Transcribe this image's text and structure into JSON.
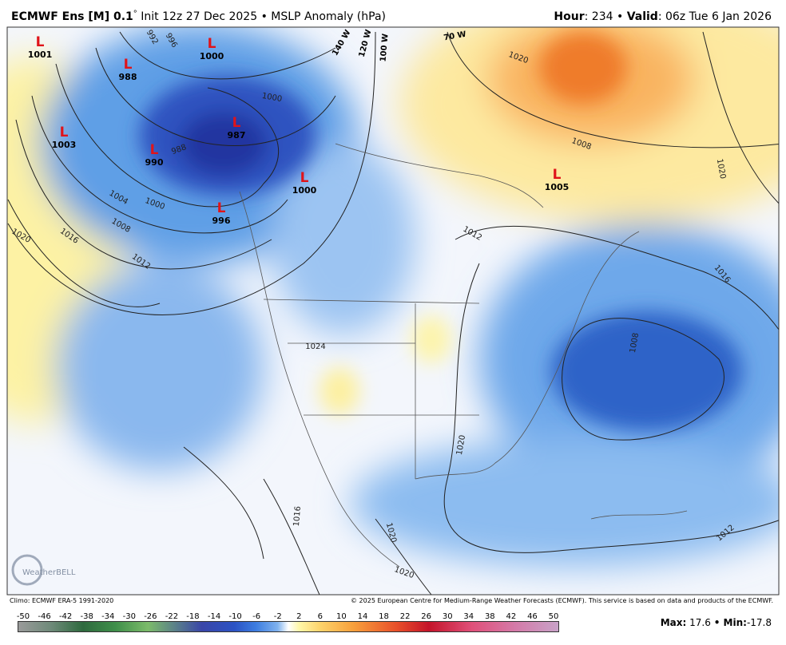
{
  "header": {
    "left": [
      {
        "text": "ECMWF Ens [M] 0.1",
        "bold": true
      },
      {
        "text": "°",
        "bold": false,
        "sup": true
      },
      {
        "text": " Init 12z 27 Dec 2025 • MSLP Anomaly (hPa)",
        "bold": false
      }
    ],
    "right": [
      {
        "text": "Hour",
        "bold": true
      },
      {
        "text": ": 234 • ",
        "bold": false
      },
      {
        "text": "Valid",
        "bold": true
      },
      {
        "text": ": 06z Tue 6 Jan 2026",
        "bold": false
      }
    ]
  },
  "lows": [
    {
      "symbol": "L",
      "value": 1001
    },
    {
      "symbol": "L",
      "value": 988
    },
    {
      "symbol": "L",
      "value": 1000
    },
    {
      "symbol": "L",
      "value": 1003
    },
    {
      "symbol": "L",
      "value": 987
    },
    {
      "symbol": "L",
      "value": 990
    },
    {
      "symbol": "L",
      "value": 1000
    },
    {
      "symbol": "L",
      "value": 996
    },
    {
      "symbol": "L",
      "value": 1005
    }
  ],
  "contour_labels": [
    992,
    996,
    1000,
    988,
    1004,
    1000,
    1008,
    1016,
    1020,
    1012,
    1008,
    1020,
    1012,
    1016,
    1008,
    1020,
    1016,
    1020,
    1020,
    1012,
    1020,
    1024
  ],
  "longitude_labels": [
    "140 W",
    "120 W",
    "100 W",
    "70 W"
  ],
  "logo": "WeatherBELL",
  "footer": {
    "climo": "Climo: ECMWF ERA-5 1991-2020",
    "copyright": "© 2025 European Centre for Medium-Range Weather Forecasts (ECMWF). This service is based on data and products of the ECMWF."
  },
  "colorbar": {
    "ticks": [
      -50,
      -46,
      -42,
      -38,
      -34,
      -30,
      -26,
      -22,
      -18,
      -14,
      -10,
      -6,
      -2,
      2,
      6,
      10,
      14,
      18,
      22,
      26,
      30,
      34,
      38,
      42,
      46,
      50
    ]
  },
  "stats": {
    "max_label": "Max:",
    "max": 17.6,
    "min_label": "• Min:",
    "min": -17.8
  }
}
